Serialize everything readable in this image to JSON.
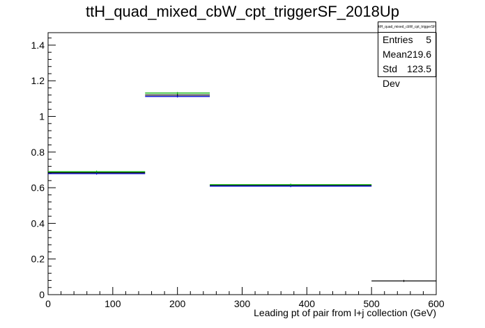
{
  "title": "ttH_quad_mixed_cbW_cpt_triggerSF_2018Up",
  "stats": {
    "name": "ttH_quad_mixed_cbW_cpt_triggerSF_2018Up",
    "entries_label": "Entries",
    "entries_value": "5",
    "mean_label": "Mean",
    "mean_value": "219.6",
    "stddev_label": "Std Dev",
    "stddev_value": "123.5"
  },
  "chart_data": {
    "type": "step",
    "title": "ttH_quad_mixed_cbW_cpt_triggerSF_2018Up",
    "xlabel": "Leading pt of pair from l+j collection (GeV)",
    "ylabel": "",
    "xlim": [
      0,
      600
    ],
    "ylim": [
      0,
      1.47
    ],
    "xticks": [
      0,
      100,
      200,
      300,
      400,
      500,
      600
    ],
    "xtick_labels": [
      "0",
      "100",
      "200",
      "300",
      "400",
      "500",
      "600"
    ],
    "yticks": [
      0,
      0.2,
      0.4,
      0.6,
      0.8,
      1,
      1.2,
      1.4
    ],
    "ytick_labels": [
      "0",
      "0.2",
      "0.4",
      "0.6",
      "0.8",
      "1",
      "1.2",
      "1.4"
    ],
    "bin_edges": [
      0,
      150,
      250,
      500,
      600
    ],
    "series": [
      {
        "color": "#000000",
        "values": [
          0.684,
          1.12,
          0.612,
          0.077
        ]
      },
      {
        "color": "#0000cc",
        "values": [
          0.679,
          1.112,
          0.609,
          null
        ]
      },
      {
        "color": "#00aa00",
        "values": [
          0.69,
          1.131,
          0.617,
          null
        ]
      }
    ],
    "grid": false
  }
}
